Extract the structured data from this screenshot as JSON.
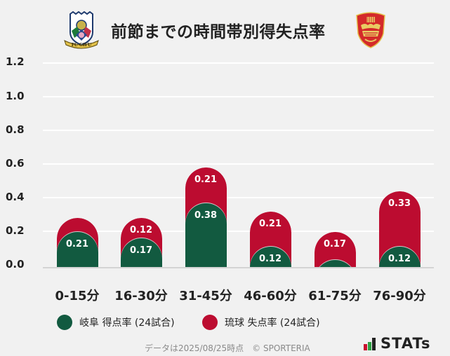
{
  "header": {
    "title": "前節までの時間帯別得失点率",
    "home_logo": "fc-gifu-crest-icon",
    "away_logo": "fc-ryukyu-shisa-crest-icon"
  },
  "colors": {
    "background": "#f1f1f1",
    "gifu_green": "#125a40",
    "ryukyu_red": "#bc0c30",
    "gridline": "#ffffff",
    "baseline": "#d4d4d4"
  },
  "legend": [
    {
      "label": "岐阜 得点率 (24試合)",
      "color": "#125a40"
    },
    {
      "label": "琉球 失点率 (24試合)",
      "color": "#bc0c30"
    }
  ],
  "footer": {
    "note": "データは2025/08/25時点　© SPORTERIA",
    "brand": "STATs"
  },
  "chart_data": {
    "type": "bar",
    "stacked": true,
    "title": "前節までの時間帯別得失点率",
    "xlabel": "",
    "ylabel": "",
    "ylim": [
      0,
      1.2
    ],
    "yticks": [
      "0.0",
      "0.2",
      "0.4",
      "0.6",
      "0.8",
      "1.0",
      "1.2"
    ],
    "grid": true,
    "legend_position": "bottom",
    "categories": [
      "0-15分",
      "16-30分",
      "31-45分",
      "46-60分",
      "61-75分",
      "76-90分"
    ],
    "series": [
      {
        "name": "岐阜 得点率 (24試合)",
        "color": "#125a40",
        "values": [
          0.21,
          0.17,
          0.38,
          0.12,
          0.04,
          0.12
        ],
        "labels": [
          "0.21",
          "0.17",
          "0.38",
          "0.12",
          "",
          "0.12"
        ]
      },
      {
        "name": "琉球 失点率 (24試合)",
        "color": "#bc0c30",
        "values": [
          0.08,
          0.12,
          0.21,
          0.21,
          0.17,
          0.33
        ],
        "labels": [
          "",
          "0.12",
          "0.21",
          "0.21",
          "0.17",
          "0.33"
        ]
      }
    ]
  }
}
